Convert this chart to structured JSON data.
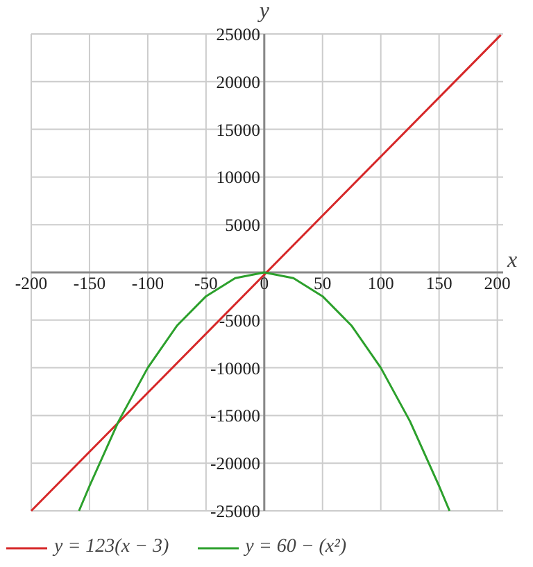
{
  "chart_data": {
    "type": "line",
    "xlabel": "x",
    "ylabel": "y",
    "xlim": [
      -200,
      205
    ],
    "ylim": [
      -25000,
      25000
    ],
    "xticks": [
      -200,
      -150,
      -100,
      -50,
      0,
      50,
      100,
      150,
      200
    ],
    "yticks": [
      -25000,
      -20000,
      -15000,
      -10000,
      -5000,
      {
        "value": 0,
        "label": null
      },
      5000,
      10000,
      15000,
      20000,
      25000
    ],
    "grid": true,
    "legend": "bottom",
    "series": [
      {
        "name": "y = 123(x − 3)",
        "color": "#d62728",
        "x": [
          -200,
          203
        ],
        "values": [
          -25000,
          24900
        ]
      },
      {
        "name": "y = 60 − (x²)",
        "color": "#2ca02c",
        "x": [
          -159,
          -150,
          -125,
          -100,
          -75,
          -50,
          -25,
          0,
          25,
          50,
          75,
          100,
          125,
          150,
          159
        ],
        "values": [
          -25000,
          -22400,
          -15600,
          -10000,
          -5600,
          -2500,
          -600,
          0,
          -600,
          -2500,
          -5600,
          -10000,
          -15600,
          -22400,
          -25000
        ]
      }
    ]
  }
}
